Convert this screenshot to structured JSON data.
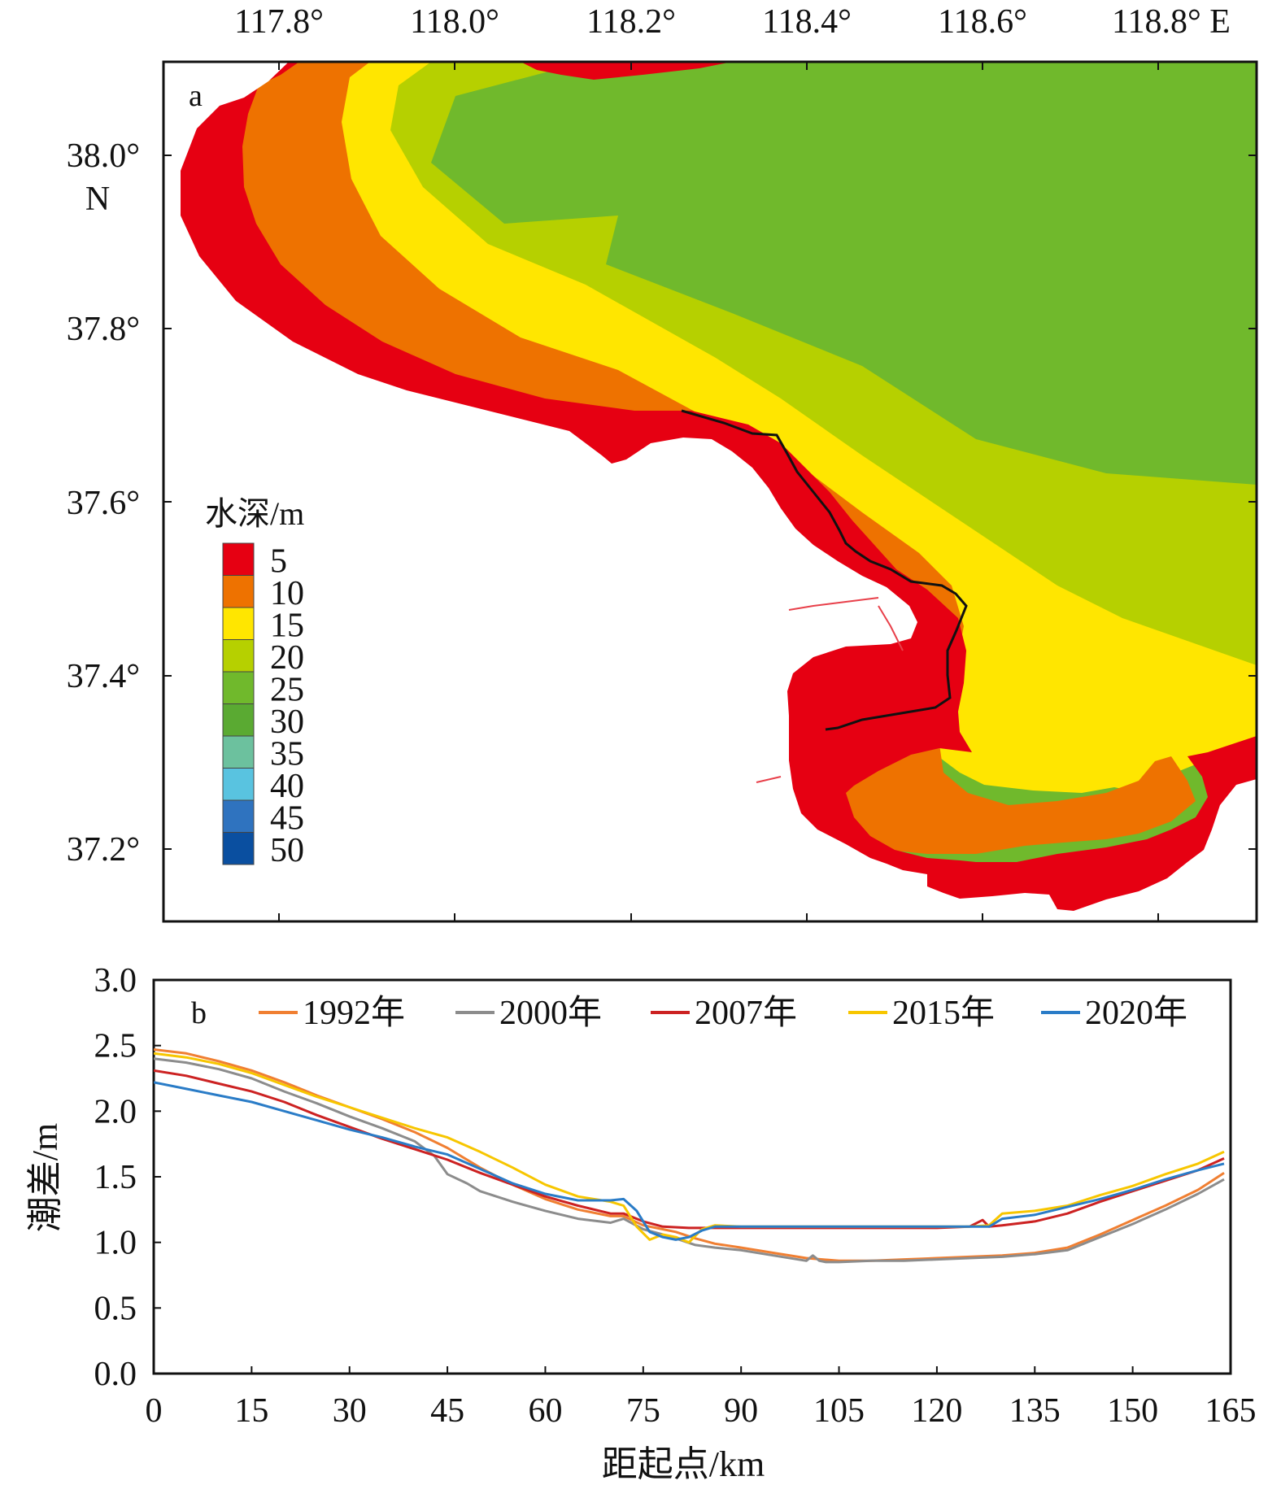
{
  "panel_a": {
    "label": "a",
    "top_ticks": [
      "117.8°",
      "118.0°",
      "118.2°",
      "118.4°",
      "118.6°",
      "118.8° E"
    ],
    "left_ticks": [
      "38.0°",
      "37.8°",
      "37.6°",
      "37.4°",
      "37.2°"
    ],
    "lat_unit": "N",
    "legend_title": "水深/m",
    "legend_levels": [
      {
        "label": "5",
        "color": "#e60012"
      },
      {
        "label": "10",
        "color": "#ee7200"
      },
      {
        "label": "15",
        "color": "#ffe600"
      },
      {
        "label": "20",
        "color": "#b6d000"
      },
      {
        "label": "25",
        "color": "#70b92c"
      },
      {
        "label": "30",
        "color": "#5aaa32"
      },
      {
        "label": "35",
        "color": "#6cc19e"
      },
      {
        "label": "40",
        "color": "#59c3e0"
      },
      {
        "label": "45",
        "color": "#2f73bf"
      },
      {
        "label": "50",
        "color": "#0a4fa0"
      }
    ],
    "land_color": "#ffffff"
  },
  "chart_data": {
    "type": "line",
    "panel_label": "b",
    "xlabel": "距起点/km",
    "ylabel": "潮差/m",
    "xlim": [
      0,
      165
    ],
    "ylim": [
      0,
      3.0
    ],
    "xticks": [
      0,
      15,
      30,
      45,
      60,
      75,
      90,
      105,
      120,
      135,
      150,
      165
    ],
    "yticks": [
      "0.0",
      "0.5",
      "1.0",
      "1.5",
      "2.0",
      "2.5",
      "3.0"
    ],
    "legend_position": "top",
    "series": [
      {
        "name": "1992年",
        "color": "#f07f32",
        "x": [
          0,
          5,
          10,
          15,
          20,
          25,
          30,
          35,
          40,
          45,
          50,
          55,
          60,
          65,
          70,
          72,
          75,
          78,
          80,
          83,
          86,
          90,
          95,
          100,
          105,
          110,
          115,
          120,
          125,
          130,
          135,
          140,
          145,
          150,
          155,
          160,
          164
        ],
        "y": [
          2.47,
          2.44,
          2.38,
          2.31,
          2.22,
          2.12,
          2.03,
          1.94,
          1.84,
          1.72,
          1.57,
          1.44,
          1.33,
          1.25,
          1.2,
          1.2,
          1.13,
          1.1,
          1.08,
          1.03,
          0.99,
          0.96,
          0.92,
          0.88,
          0.86,
          0.86,
          0.87,
          0.88,
          0.89,
          0.9,
          0.92,
          0.96,
          1.06,
          1.17,
          1.28,
          1.4,
          1.53
        ]
      },
      {
        "name": "2000年",
        "color": "#8c8c8c",
        "x": [
          0,
          5,
          10,
          15,
          20,
          25,
          30,
          35,
          40,
          43,
          45,
          48,
          50,
          55,
          60,
          65,
          70,
          72,
          75,
          78,
          80,
          83,
          86,
          90,
          95,
          100,
          101,
          102,
          103,
          105,
          110,
          115,
          120,
          125,
          130,
          135,
          140,
          145,
          150,
          155,
          160,
          164
        ],
        "y": [
          2.4,
          2.37,
          2.32,
          2.25,
          2.15,
          2.06,
          1.96,
          1.87,
          1.77,
          1.66,
          1.52,
          1.45,
          1.39,
          1.31,
          1.24,
          1.18,
          1.15,
          1.18,
          1.1,
          1.06,
          1.03,
          0.98,
          0.96,
          0.94,
          0.9,
          0.86,
          0.9,
          0.86,
          0.85,
          0.85,
          0.86,
          0.86,
          0.87,
          0.88,
          0.89,
          0.91,
          0.94,
          1.04,
          1.14,
          1.25,
          1.37,
          1.48
        ]
      },
      {
        "name": "2007年",
        "color": "#cc2222",
        "x": [
          0,
          5,
          10,
          15,
          20,
          25,
          30,
          35,
          40,
          45,
          50,
          55,
          60,
          65,
          70,
          72,
          75,
          78,
          82,
          90,
          100,
          110,
          120,
          125,
          127,
          128,
          130,
          135,
          140,
          145,
          150,
          155,
          160,
          164
        ],
        "y": [
          2.31,
          2.27,
          2.21,
          2.15,
          2.07,
          1.97,
          1.88,
          1.79,
          1.71,
          1.63,
          1.53,
          1.44,
          1.35,
          1.28,
          1.22,
          1.22,
          1.16,
          1.12,
          1.11,
          1.11,
          1.11,
          1.11,
          1.11,
          1.12,
          1.17,
          1.12,
          1.13,
          1.16,
          1.22,
          1.31,
          1.39,
          1.47,
          1.55,
          1.64
        ]
      },
      {
        "name": "2015年",
        "color": "#f7c600",
        "x": [
          0,
          5,
          10,
          15,
          20,
          25,
          30,
          35,
          40,
          45,
          50,
          55,
          60,
          65,
          70,
          72,
          74,
          76,
          78,
          80,
          82,
          84,
          86,
          90,
          100,
          110,
          120,
          125,
          128,
          130,
          135,
          140,
          145,
          150,
          155,
          160,
          164
        ],
        "y": [
          2.44,
          2.41,
          2.36,
          2.29,
          2.2,
          2.11,
          2.03,
          1.95,
          1.87,
          1.8,
          1.69,
          1.57,
          1.44,
          1.35,
          1.31,
          1.28,
          1.12,
          1.02,
          1.06,
          1.04,
          1.0,
          1.1,
          1.13,
          1.12,
          1.12,
          1.12,
          1.12,
          1.12,
          1.13,
          1.22,
          1.24,
          1.28,
          1.36,
          1.43,
          1.52,
          1.6,
          1.69
        ]
      },
      {
        "name": "2020年",
        "color": "#2a7cc7",
        "x": [
          0,
          5,
          10,
          15,
          20,
          25,
          30,
          35,
          40,
          45,
          50,
          55,
          60,
          65,
          70,
          72,
          74,
          76,
          78,
          80,
          82,
          84,
          86,
          90,
          100,
          110,
          120,
          125,
          128,
          130,
          135,
          140,
          145,
          150,
          155,
          160,
          164
        ],
        "y": [
          2.22,
          2.17,
          2.12,
          2.07,
          2.0,
          1.93,
          1.86,
          1.8,
          1.73,
          1.67,
          1.56,
          1.45,
          1.37,
          1.32,
          1.32,
          1.33,
          1.24,
          1.08,
          1.04,
          1.02,
          1.04,
          1.09,
          1.12,
          1.12,
          1.12,
          1.12,
          1.12,
          1.12,
          1.12,
          1.18,
          1.21,
          1.27,
          1.33,
          1.4,
          1.48,
          1.55,
          1.6
        ]
      }
    ]
  }
}
